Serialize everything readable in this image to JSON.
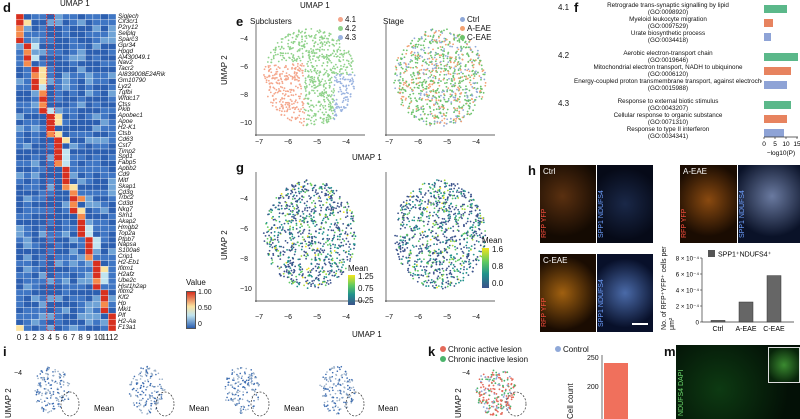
{
  "panels": {
    "d": "d",
    "e": "e",
    "f": "f",
    "g": "g",
    "h": "h",
    "i": "i",
    "k": "k",
    "m": "m"
  },
  "top_title": "UMAP 1",
  "heatmap": {
    "title": "UMAP 1",
    "genes": [
      "Siglech",
      "Cx3cr1",
      "P2ry12",
      "Selplg",
      "Sparc3",
      "Gpr34",
      "Hpgd",
      "AI430049.1",
      "Nav2",
      "Tacr2",
      "AI839008E24Rik",
      "Gm10790",
      "Lyz2",
      "Tgfbi",
      "Wfdc17",
      "Ctss",
      "Pkib",
      "Apobec1",
      "Apoe",
      "H2-K1",
      "Ctsb",
      "Cd63",
      "Cst7",
      "Timp2",
      "Spp1",
      "Fabp5",
      "Apbb2",
      "Cd9",
      "Mitf",
      "Skap1",
      "Cd3g",
      "Trbc2",
      "Cd3d",
      "Nkg7",
      "Slrn1",
      "Akap2",
      "Hmgb2",
      "Top2a",
      "Ptpb7",
      "Napsa",
      "S100a6",
      "Crip1",
      "H2-Eb1",
      "Ifitm1",
      "H2afz",
      "Ube2c",
      "Hist1h2ap",
      "Ifitm2",
      "Klf2",
      "Hp",
      "Mki1",
      "Plf",
      "H2-Aa",
      "F13a1"
    ],
    "columns": [
      "0",
      "1",
      "2",
      "3",
      "4",
      "5",
      "6",
      "7",
      "8",
      "9",
      "10",
      "11",
      "12"
    ],
    "legend_title": "Value",
    "legend_ticks": [
      "1.00",
      "0.50",
      "0"
    ]
  },
  "panel_e": {
    "subclusters_title": "Subclusters",
    "stage_title": "Stage",
    "legend_sub": [
      "4.1",
      "4.2",
      "4.3"
    ],
    "legend_stage": [
      "Ctrl",
      "A-EAE",
      "C-EAE"
    ],
    "colors_sub": [
      "#f4a58a",
      "#8fd28a",
      "#9ab3e0"
    ],
    "colors_stage": [
      "#8fa8d8",
      "#f2a070",
      "#6cc36c"
    ],
    "ylabel": "UMAP 2",
    "xlabel": "UMAP 1",
    "xticks": [
      "−7",
      "−6",
      "−5",
      "−4"
    ],
    "yticks": [
      "−4",
      "−6",
      "−8",
      "−10"
    ]
  },
  "panel_f": {
    "groups": [
      {
        "id": "4.1",
        "terms": [
          {
            "name": "Retrograde trans-synaptic signalling by lipid",
            "go": "(GO:0098920)",
            "value": 10,
            "color": "#5bb88a"
          },
          {
            "name": "Myeloid leukocyte migration",
            "go": "(GO:0097529)",
            "value": 4,
            "color": "#e7835f"
          },
          {
            "name": "Urate biosynthetic process",
            "go": "(GO:0034418)",
            "value": 3,
            "color": "#8ea3d6"
          }
        ]
      },
      {
        "id": "4.2",
        "terms": [
          {
            "name": "Aerobic electron-transport chain",
            "go": "(GO:0019646)",
            "value": 15,
            "color": "#5bb88a"
          },
          {
            "name": "Mitochondrial electron transport, NADH to ubiquinone",
            "go": "(GO:0006120)",
            "value": 12,
            "color": "#e7835f"
          },
          {
            "name": "Energy-coupled proton transmembrane transport, against electrochemical gradient",
            "go": "(GO:0015988)",
            "value": 10,
            "color": "#8ea3d6"
          }
        ]
      },
      {
        "id": "4.3",
        "terms": [
          {
            "name": "Response to external biotic stimulus",
            "go": "(GO:0043207)",
            "value": 12,
            "color": "#5bb88a"
          },
          {
            "name": "Cellular response to organic substance",
            "go": "(GO:0071310)",
            "value": 10,
            "color": "#e7835f"
          },
          {
            "name": "Response to type II interferon",
            "go": "(GO:0034341)",
            "value": 9,
            "color": "#8ea3d6"
          }
        ]
      }
    ],
    "xticks": [
      "0",
      "5",
      "10",
      "15"
    ],
    "xlabel": "−log10(P)"
  },
  "panel_g": {
    "legend_title": "Mean",
    "legend_left": [
      "1.25",
      "0.75",
      "0.25"
    ],
    "legend_right": [
      "1.6",
      "0.8",
      "0.0"
    ],
    "ylabel": "UMAP 2",
    "xlabel": "UMAP 1",
    "xticks": [
      "−7",
      "−6",
      "−5",
      "−4"
    ],
    "yticks": [
      "−4",
      "−6",
      "−8",
      "−10"
    ]
  },
  "panel_h": {
    "labels": [
      "Ctrl",
      "A-EAE",
      "C-EAE"
    ],
    "stain_left": "RFP YFP",
    "stain_right": "SPP1 NDUFS4",
    "chart_legend": "SPP1⁺NDUFS4⁺",
    "ylabel": "No. of RFP⁺YFP⁺ cells per μm²",
    "yticks": [
      "8 × 10⁻⁴",
      "6 × 10⁻⁴",
      "4 × 10⁻⁴",
      "2 × 10⁻⁴",
      "0"
    ]
  },
  "chart_data": {
    "type": "bar",
    "categories": [
      "Ctrl",
      "A-EAE",
      "C-EAE"
    ],
    "series": [
      {
        "name": "SPP1⁺NDUFS4⁺",
        "values": [
          2e-05,
          0.00025,
          0.00058
        ]
      }
    ],
    "ylabel": "No. of RFP⁺YFP⁺ cells per μm²",
    "ylim": [
      0,
      0.0008
    ]
  },
  "panel_i": {
    "ylabel": "UMAP 2",
    "mean_label": "Mean",
    "ytick": "−4"
  },
  "panel_k": {
    "legend": [
      "Chronic active lesion",
      "Control",
      "Chronic inactive lesion"
    ],
    "colors": [
      "#e46a5a",
      "#8fa8d8",
      "#4bb36b"
    ],
    "ylabel": "UMAP 2",
    "ytick": "−4",
    "bar_ylabel": "Cell count",
    "bar_ticks": [
      "250",
      "200"
    ]
  },
  "panel_m": {
    "stain": "NDUFS4 DAPI"
  }
}
